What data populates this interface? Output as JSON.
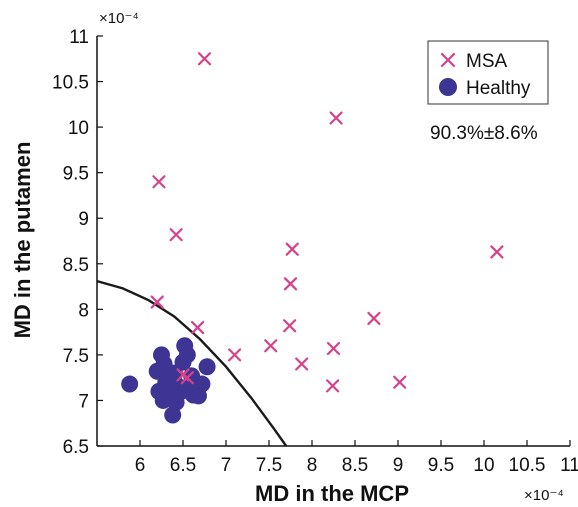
{
  "chart_data": {
    "type": "scatter",
    "title": "",
    "xlabel": "MD in the MCP",
    "ylabel": "MD in the putamen",
    "x_exponent": "×10⁻⁴",
    "y_exponent": "×10⁻⁴",
    "xlim": [
      5.5,
      11
    ],
    "ylim": [
      6.5,
      11
    ],
    "x_ticks": [
      6,
      6.5,
      7,
      7.5,
      8,
      8.5,
      9,
      9.5,
      10,
      10.5,
      11
    ],
    "x_tick_labels": [
      "6",
      "6.5",
      "7",
      "7.5",
      "8",
      "8.5",
      "9",
      "9.5",
      "10",
      "10.5",
      "11"
    ],
    "y_ticks": [
      6.5,
      7,
      7.5,
      8,
      8.5,
      9,
      9.5,
      10,
      10.5,
      11
    ],
    "y_tick_labels": [
      "6.5",
      "7",
      "7.5",
      "8",
      "8.5",
      "9",
      "9.5",
      "10",
      "10.5",
      "11"
    ],
    "grid": false,
    "legend_position": "top-right",
    "colors": {
      "msa": "#d6428a",
      "healthy": "#3d3494",
      "boundary": "#1a1a1a"
    },
    "series": [
      {
        "name": "MSA",
        "marker": "x",
        "points": [
          [
            6.75,
            10.75
          ],
          [
            8.28,
            10.1
          ],
          [
            6.22,
            9.4
          ],
          [
            6.42,
            8.82
          ],
          [
            7.77,
            8.66
          ],
          [
            10.15,
            8.63
          ],
          [
            7.75,
            8.28
          ],
          [
            6.2,
            8.08
          ],
          [
            6.67,
            7.8
          ],
          [
            7.74,
            7.82
          ],
          [
            8.72,
            7.9
          ],
          [
            7.1,
            7.5
          ],
          [
            7.52,
            7.6
          ],
          [
            8.25,
            7.57
          ],
          [
            7.88,
            7.4
          ],
          [
            8.24,
            7.16
          ],
          [
            9.02,
            7.2
          ],
          [
            6.5,
            7.28
          ],
          [
            6.55,
            7.25
          ]
        ]
      },
      {
        "name": "Healthy",
        "marker": "circle",
        "points": [
          [
            5.88,
            7.18
          ],
          [
            6.2,
            7.32
          ],
          [
            6.25,
            7.5
          ],
          [
            6.28,
            7.4
          ],
          [
            6.22,
            7.1
          ],
          [
            6.3,
            7.2
          ],
          [
            6.35,
            7.05
          ],
          [
            6.4,
            7.3
          ],
          [
            6.42,
            6.98
          ],
          [
            6.38,
            6.84
          ],
          [
            6.45,
            7.15
          ],
          [
            6.5,
            7.42
          ],
          [
            6.52,
            7.6
          ],
          [
            6.55,
            7.5
          ],
          [
            6.58,
            7.15
          ],
          [
            6.6,
            7.27
          ],
          [
            6.62,
            7.06
          ],
          [
            6.68,
            7.05
          ],
          [
            6.72,
            7.18
          ],
          [
            6.78,
            7.37
          ],
          [
            6.32,
            7.24
          ],
          [
            6.48,
            7.1
          ],
          [
            6.27,
            7.0
          ],
          [
            6.4,
            7.2
          ]
        ]
      }
    ],
    "boundary_curve": [
      [
        5.5,
        8.31
      ],
      [
        5.8,
        8.23
      ],
      [
        6.1,
        8.1
      ],
      [
        6.4,
        7.92
      ],
      [
        6.7,
        7.67
      ],
      [
        7.0,
        7.37
      ],
      [
        7.3,
        7.02
      ],
      [
        7.55,
        6.7
      ],
      [
        7.7,
        6.5
      ]
    ],
    "annotations": [
      {
        "text": "90.3%±8.6%"
      }
    ]
  }
}
